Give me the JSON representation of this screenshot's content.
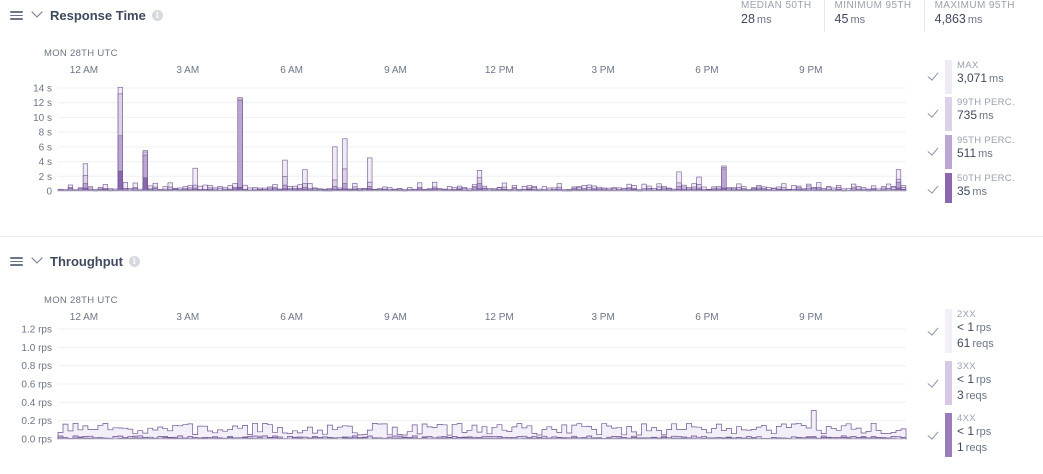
{
  "colors": {
    "max": "#efeaf4",
    "p99": "#ddd1e8",
    "p95": "#bba6d3",
    "p50": "#8b66ad",
    "stroke": "#6e5490",
    "grid": "#eef0f3",
    "axis_text": "#6c7686",
    "tp2xx": "#f3eff8",
    "tp3xx": "#d6c8e4",
    "tp4xx": "#9a7cba"
  },
  "response_time": {
    "title": "Response Time",
    "summary": [
      {
        "label": "MEDIAN 50TH",
        "value": "28",
        "unit": "ms"
      },
      {
        "label": "MINIMUM 95TH",
        "value": "45",
        "unit": "ms"
      },
      {
        "label": "MAXIMUM 95TH",
        "value": "4,863",
        "unit": "ms"
      }
    ],
    "date_label": "MON 28TH UTC",
    "legend": [
      {
        "label": "MAX",
        "value": "3,071",
        "unit": "ms",
        "color": "#efeaf4"
      },
      {
        "label": "99TH PERC.",
        "value": "735",
        "unit": "ms",
        "color": "#ddd1e8"
      },
      {
        "label": "95TH PERC.",
        "value": "511",
        "unit": "ms",
        "color": "#bba6d3"
      },
      {
        "label": "50TH PERC.",
        "value": "35",
        "unit": "ms",
        "color": "#8b66ad"
      }
    ]
  },
  "throughput": {
    "title": "Throughput",
    "date_label": "MON 28TH UTC",
    "legend": [
      {
        "label": "2XX",
        "lines": [
          {
            "lt": "< 1",
            "unit": "rps"
          },
          {
            "lt": "61",
            "unit": "reqs"
          }
        ],
        "color": "#f3eff8"
      },
      {
        "label": "3XX",
        "lines": [
          {
            "lt": "< 1",
            "unit": "rps"
          },
          {
            "lt": "3",
            "unit": "reqs"
          }
        ],
        "color": "#d6c8e4"
      },
      {
        "label": "4XX",
        "lines": [
          {
            "lt": "< 1",
            "unit": "rps"
          },
          {
            "lt": "1",
            "unit": "reqs"
          }
        ],
        "color": "#9a7cba"
      }
    ]
  },
  "chart_data": [
    {
      "type": "bar",
      "title": "Response Time",
      "x_ticks": [
        "12 AM",
        "3 AM",
        "6 AM",
        "9 AM",
        "12 PM",
        "3 PM",
        "6 PM",
        "9 PM"
      ],
      "x_range_hours": [
        -0.75,
        23.75
      ],
      "y_ticks": [
        "0",
        "2 s",
        "4 s",
        "6 s",
        "8 s",
        "10 s",
        "12 s",
        "14 s"
      ],
      "ylim": [
        0,
        14
      ],
      "unit": "s",
      "grid": true,
      "legend_position": "right",
      "spikes": [
        {
          "hour": 0.0,
          "max": 3.7,
          "p99": 2.1,
          "p95": 1.0,
          "p50": 0.4
        },
        {
          "hour": 1.0,
          "max": 14.1,
          "p99": 13.2,
          "p95": 7.5,
          "p50": 2.7
        },
        {
          "hour": 1.75,
          "max": 5.5,
          "p99": 5.3,
          "p95": 4.9,
          "p50": 1.8
        },
        {
          "hour": 3.2,
          "max": 3.1,
          "p99": 0.8,
          "p95": 0.4,
          "p50": 0.2
        },
        {
          "hour": 4.55,
          "max": 12.7,
          "p99": 12.5,
          "p95": 12.3,
          "p50": 0.5
        },
        {
          "hour": 5.75,
          "max": 4.2,
          "p99": 2.0,
          "p95": 0.8,
          "p50": 0.3
        },
        {
          "hour": 6.35,
          "max": 2.9,
          "p99": 1.0,
          "p95": 0.5,
          "p50": 0.2
        },
        {
          "hour": 7.3,
          "max": 6.0,
          "p99": 1.5,
          "p95": 0.6,
          "p50": 0.2
        },
        {
          "hour": 7.55,
          "max": 7.1,
          "p99": 3.0,
          "p95": 1.0,
          "p50": 0.3
        },
        {
          "hour": 8.2,
          "max": 4.5,
          "p99": 1.2,
          "p95": 0.6,
          "p50": 0.3
        },
        {
          "hour": 11.45,
          "max": 2.8,
          "p99": 1.8,
          "p95": 1.0,
          "p50": 0.3
        },
        {
          "hour": 17.25,
          "max": 2.6,
          "p99": 1.1,
          "p95": 0.6,
          "p50": 0.2
        },
        {
          "hour": 17.75,
          "max": 1.9,
          "p99": 0.9,
          "p95": 0.4,
          "p50": 0.2
        },
        {
          "hour": 18.5,
          "max": 3.4,
          "p99": 3.2,
          "p95": 3.0,
          "p50": 0.4
        },
        {
          "hour": 23.5,
          "max": 2.9,
          "p99": 1.6,
          "p95": 1.2,
          "p50": 0.4
        }
      ],
      "baseline": {
        "max": 0.55,
        "p99": 0.3,
        "p95": 0.18,
        "p50": 0.08
      }
    },
    {
      "type": "area",
      "title": "Throughput",
      "x_ticks": [
        "12 AM",
        "3 AM",
        "6 AM",
        "9 AM",
        "12 PM",
        "3 PM",
        "6 PM",
        "9 PM"
      ],
      "x_range_hours": [
        -0.75,
        23.75
      ],
      "y_ticks": [
        "0.0 rps",
        "0.2 rps",
        "0.4 rps",
        "0.6 rps",
        "0.8 rps",
        "1.0 rps",
        "1.2 rps"
      ],
      "ylim": [
        0,
        1.2
      ],
      "unit": "rps",
      "grid": true,
      "legend_position": "right",
      "series": [
        {
          "name": "2XX",
          "typical": 0.1,
          "range": [
            0.02,
            0.28
          ],
          "peak": {
            "hour": 21.05,
            "value": 0.31
          }
        },
        {
          "name": "3XX",
          "typical": 0.02
        },
        {
          "name": "4XX",
          "typical": 0.01
        }
      ]
    }
  ]
}
